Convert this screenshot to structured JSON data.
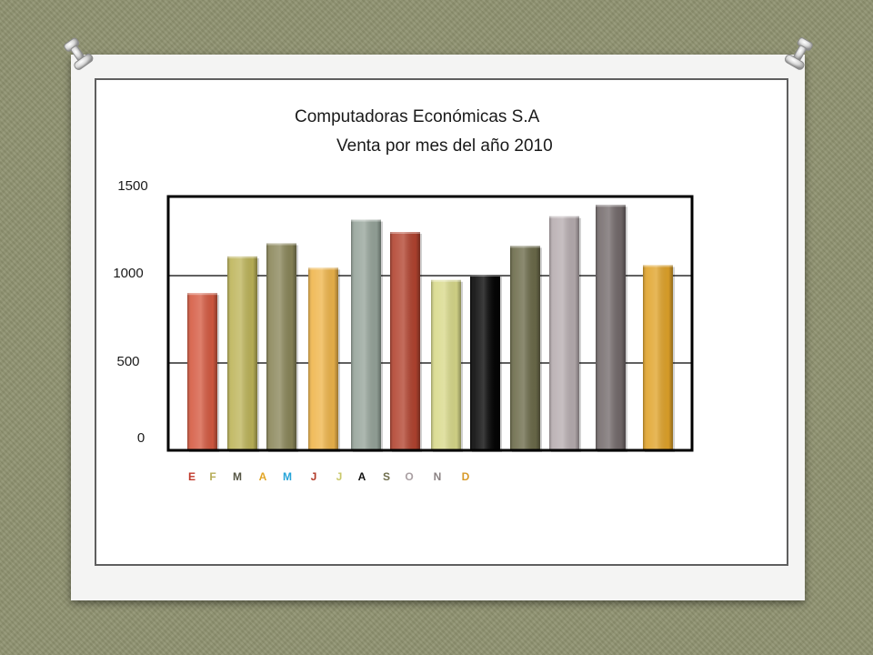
{
  "slide": {
    "title_line1": "Computadoras Económicas S.A",
    "title_line2": "Venta por mes del año  2010"
  },
  "chart_data": {
    "type": "bar",
    "title": "Computadoras Económicas S.A Venta por mes del año 2010",
    "categories": [
      "E",
      "F",
      "M",
      "A",
      "M",
      "J",
      "J",
      "A",
      "S",
      "O",
      "N",
      "D"
    ],
    "values": [
      900,
      1110,
      1185,
      1045,
      1320,
      1250,
      975,
      1005,
      1170,
      1340,
      1405,
      1060
    ],
    "y_tick_labels": [
      "0",
      "500",
      "1000",
      "1500"
    ],
    "ylim": [
      0,
      1500
    ],
    "grid": true,
    "bar_colors": [
      "#d55a41",
      "#bdb459",
      "#8a8659",
      "#efb54b",
      "#96a49a",
      "#b2432f",
      "#d8d98a",
      "#050505",
      "#6b6a49",
      "#b7adb0",
      "#736a6b",
      "#e0a32a"
    ],
    "label_colors": [
      "#c0392b",
      "#b6ad58",
      "#555544",
      "#e2a526",
      "#26a4d8",
      "#b23a28",
      "#c9c86a",
      "#111111",
      "#6f6e4d",
      "#aaa0a3",
      "#8a8283",
      "#d89a2a"
    ]
  }
}
